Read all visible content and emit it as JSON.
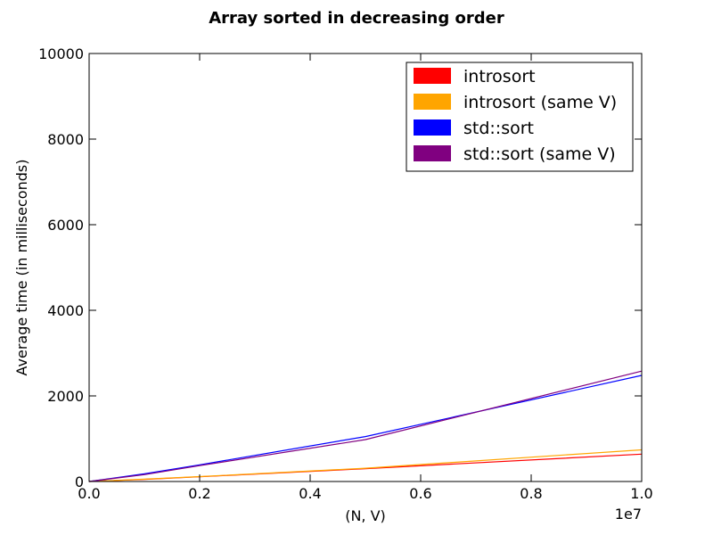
{
  "chart_data": {
    "type": "line",
    "title": "Array sorted in decreasing order",
    "xlabel": "(N, V)",
    "ylabel": "Average time (in milliseconds)",
    "x_offset_label": "1e7",
    "xlim": [
      0,
      1.0
    ],
    "ylim": [
      0,
      10000
    ],
    "x_ticks": [
      0.0,
      0.2,
      0.4,
      0.6,
      0.8,
      1.0
    ],
    "x_tick_labels": [
      "0.0",
      "0.2",
      "0.4",
      "0.6",
      "0.8",
      "1.0"
    ],
    "y_ticks": [
      0,
      2000,
      4000,
      6000,
      8000,
      10000
    ],
    "y_tick_labels": [
      "0",
      "2000",
      "4000",
      "6000",
      "8000",
      "10000"
    ],
    "grid": false,
    "legend_position": "top-right",
    "series": [
      {
        "name": "introsort",
        "color": "#ff0000",
        "x": [
          0,
          0.1,
          0.2,
          0.5,
          1.0
        ],
        "y": [
          0,
          50,
          110,
          300,
          640
        ]
      },
      {
        "name": "introsort (same V)",
        "color": "#ffa500",
        "x": [
          0,
          0.1,
          0.2,
          0.5,
          1.0
        ],
        "y": [
          0,
          55,
          115,
          310,
          740
        ]
      },
      {
        "name": "std::sort",
        "color": "#0000ff",
        "x": [
          0,
          0.1,
          0.2,
          0.5,
          1.0
        ],
        "y": [
          0,
          180,
          390,
          1050,
          2480
        ]
      },
      {
        "name": "std::sort (same V)",
        "color": "#800080",
        "x": [
          0,
          0.1,
          0.2,
          0.5,
          1.0
        ],
        "y": [
          0,
          160,
          370,
          980,
          2580
        ]
      }
    ]
  }
}
